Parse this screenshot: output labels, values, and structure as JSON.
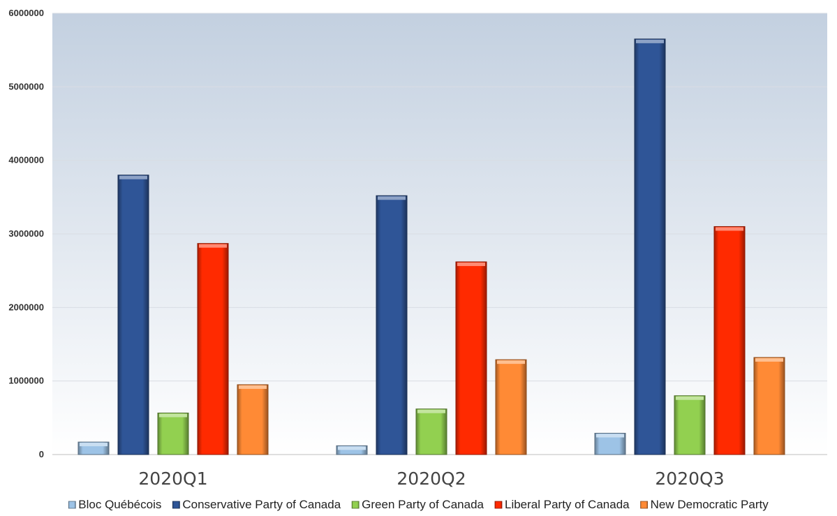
{
  "chart_data": {
    "type": "bar",
    "categories": [
      "2020Q1",
      "2020Q2",
      "2020Q3"
    ],
    "series": [
      {
        "name": "Bloc Québécois",
        "color": "#9dc3e6",
        "values": [
          170000,
          120000,
          290000
        ]
      },
      {
        "name": "Conservative Party of Canada",
        "color": "#2f5597",
        "values": [
          3800000,
          3520000,
          5650000
        ]
      },
      {
        "name": "Green Party of Canada",
        "color": "#92d050",
        "values": [
          565000,
          620000,
          800000
        ]
      },
      {
        "name": "Liberal Party of Canada",
        "color": "#ff2a00",
        "values": [
          2870000,
          2620000,
          3100000
        ]
      },
      {
        "name": "New Democratic Party",
        "color": "#ff8a35",
        "values": [
          950000,
          1290000,
          1320000
        ]
      }
    ],
    "ylim": [
      0,
      6000000
    ],
    "yticks": [
      "0",
      "1000000",
      "2000000",
      "3000000",
      "4000000",
      "5000000",
      "6000000"
    ],
    "grid": true,
    "legend": "bottom"
  }
}
